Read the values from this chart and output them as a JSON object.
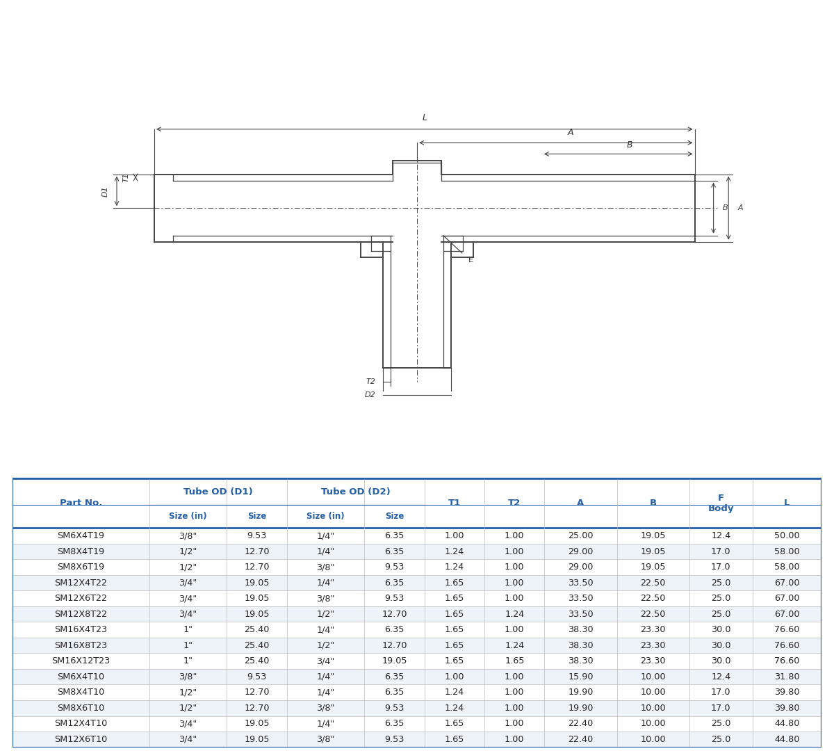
{
  "rows": [
    [
      "SM6X4T19",
      "3/8\"",
      "9.53",
      "1/4\"",
      "6.35",
      "1.00",
      "1.00",
      "25.00",
      "19.05",
      "12.4",
      "50.00"
    ],
    [
      "SM8X4T19",
      "1/2\"",
      "12.70",
      "1/4\"",
      "6.35",
      "1.24",
      "1.00",
      "29.00",
      "19.05",
      "17.0",
      "58.00"
    ],
    [
      "SM8X6T19",
      "1/2\"",
      "12.70",
      "3/8\"",
      "9.53",
      "1.24",
      "1.00",
      "29.00",
      "19.05",
      "17.0",
      "58.00"
    ],
    [
      "SM12X4T22",
      "3/4\"",
      "19.05",
      "1/4\"",
      "6.35",
      "1.65",
      "1.00",
      "33.50",
      "22.50",
      "25.0",
      "67.00"
    ],
    [
      "SM12X6T22",
      "3/4\"",
      "19.05",
      "3/8\"",
      "9.53",
      "1.65",
      "1.00",
      "33.50",
      "22.50",
      "25.0",
      "67.00"
    ],
    [
      "SM12X8T22",
      "3/4\"",
      "19.05",
      "1/2\"",
      "12.70",
      "1.65",
      "1.24",
      "33.50",
      "22.50",
      "25.0",
      "67.00"
    ],
    [
      "SM16X4T23",
      "1\"",
      "25.40",
      "1/4\"",
      "6.35",
      "1.65",
      "1.00",
      "38.30",
      "23.30",
      "30.0",
      "76.60"
    ],
    [
      "SM16X8T23",
      "1\"",
      "25.40",
      "1/2\"",
      "12.70",
      "1.65",
      "1.24",
      "38.30",
      "23.30",
      "30.0",
      "76.60"
    ],
    [
      "SM16X12T23",
      "1\"",
      "25.40",
      "3/4\"",
      "19.05",
      "1.65",
      "1.65",
      "38.30",
      "23.30",
      "30.0",
      "76.60"
    ],
    [
      "SM6X4T10",
      "3/8\"",
      "9.53",
      "1/4\"",
      "6.35",
      "1.00",
      "1.00",
      "15.90",
      "10.00",
      "12.4",
      "31.80"
    ],
    [
      "SM8X4T10",
      "1/2\"",
      "12.70",
      "1/4\"",
      "6.35",
      "1.24",
      "1.00",
      "19.90",
      "10.00",
      "17.0",
      "39.80"
    ],
    [
      "SM8X6T10",
      "1/2\"",
      "12.70",
      "3/8\"",
      "9.53",
      "1.24",
      "1.00",
      "19.90",
      "10.00",
      "17.0",
      "39.80"
    ],
    [
      "SM12X4T10",
      "3/4\"",
      "19.05",
      "1/4\"",
      "6.35",
      "1.65",
      "1.00",
      "22.40",
      "10.00",
      "25.0",
      "44.80"
    ],
    [
      "SM12X6T10",
      "3/4\"",
      "19.05",
      "3/8\"",
      "9.53",
      "1.65",
      "1.00",
      "22.40",
      "10.00",
      "25.0",
      "44.80"
    ]
  ],
  "col_widths": [
    1.55,
    0.88,
    0.68,
    0.88,
    0.68,
    0.68,
    0.68,
    0.82,
    0.82,
    0.72,
    0.78
  ],
  "line_color": "#2560a8",
  "row_colors": [
    "#ffffff",
    "#eef2f9"
  ],
  "text_color_header": "#2560a8",
  "text_color_data": "#222222",
  "diagram_line_color": "#444444"
}
